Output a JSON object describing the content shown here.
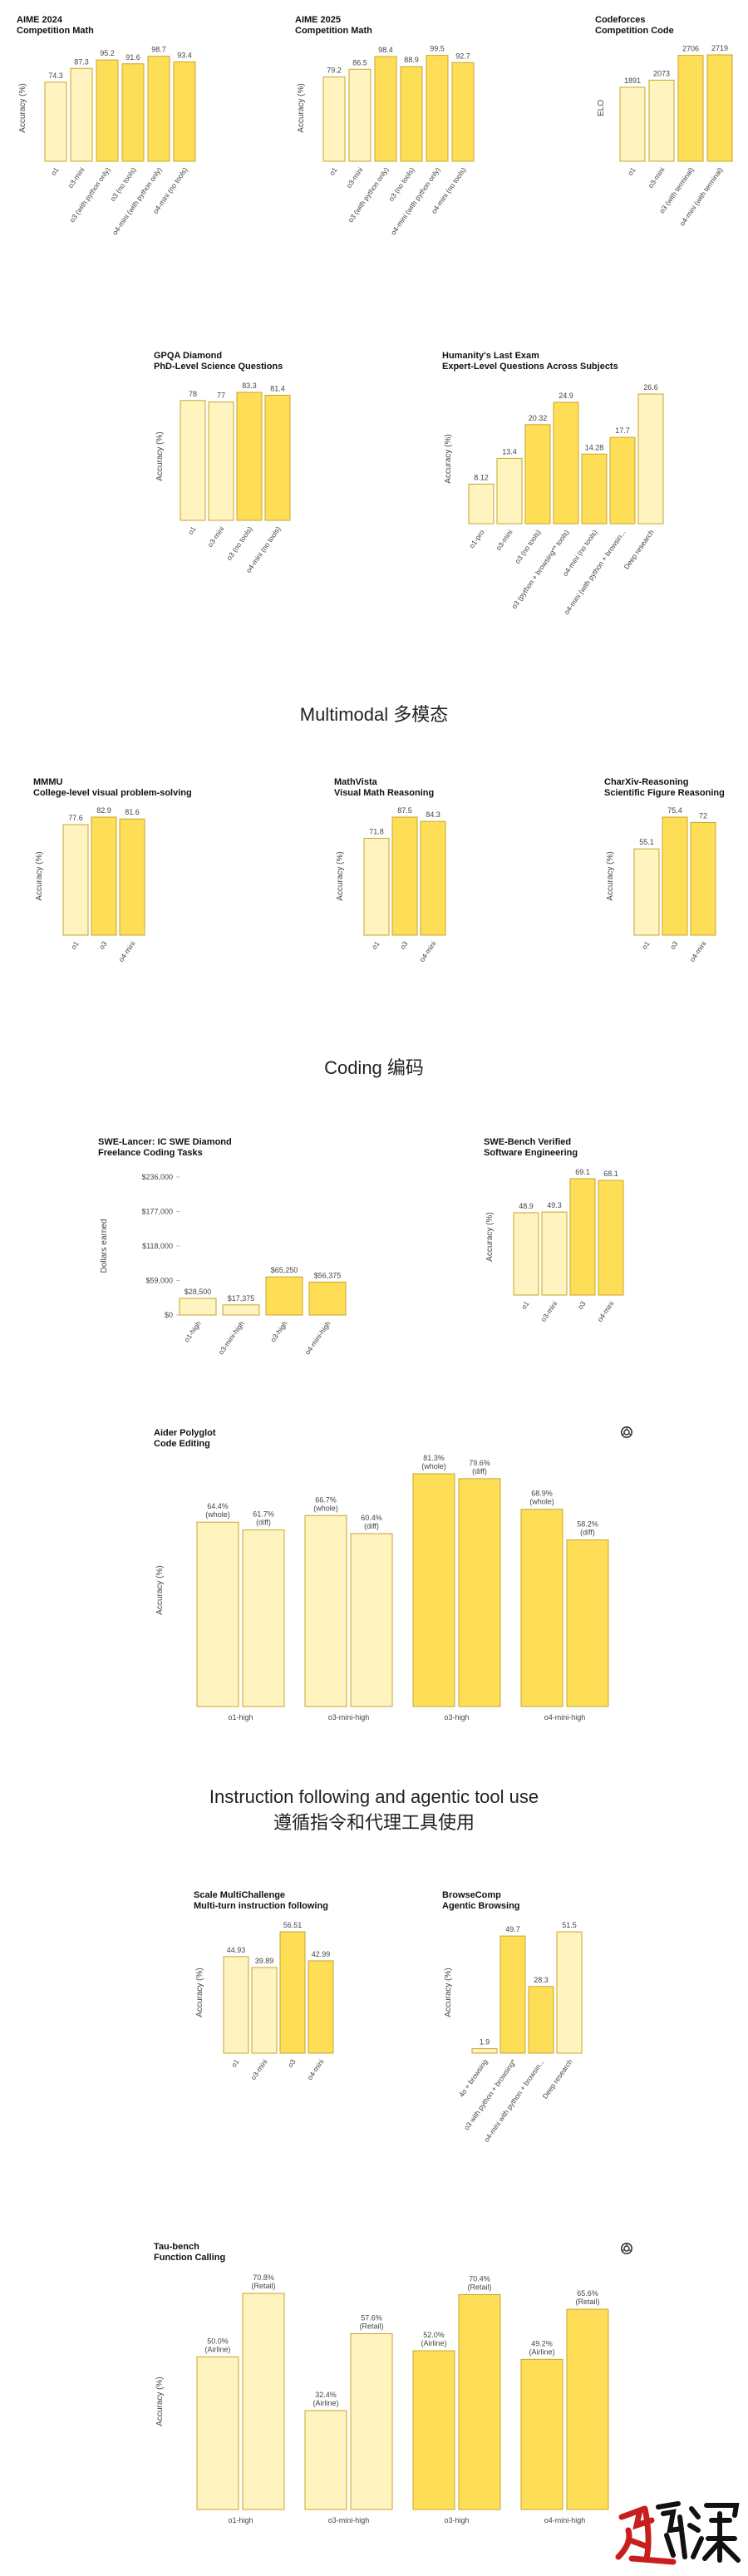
{
  "sections": {
    "multimodal": "Multimodal  多模态",
    "coding": "Coding  编码",
    "instruction_line1": "Instruction following and agentic tool use",
    "instruction_line2": "遵循指令和代理工具使用"
  },
  "icons": {
    "openai_logo": "openai-logo-icon"
  },
  "watermark": "速深",
  "colors": {
    "light": "#fff3bf",
    "mid": "#ffeb85",
    "strong": "#ffde57",
    "border": "#c9a62a"
  },
  "chart_data": [
    {
      "id": "aime2024",
      "type": "bar",
      "title": "AIME 2024",
      "subtitle": "Competition Math",
      "ylabel": "Accuracy (%)",
      "ylim": [
        0,
        100
      ],
      "categories": [
        "o1",
        "o3-mini",
        "o3 (with python only)",
        "o3 (no tools)",
        "o4-mini (with python only)",
        "o4-mini (no tools)"
      ],
      "labels": [
        "74.3",
        "87.3",
        "95.2",
        "91.6",
        "98.7",
        "93.4"
      ],
      "values": [
        74.3,
        87.3,
        95.2,
        91.6,
        98.7,
        93.4
      ],
      "shades": [
        "light",
        "light",
        "strong",
        "strong",
        "strong",
        "strong"
      ]
    },
    {
      "id": "aime2025",
      "type": "bar",
      "title": "AIME 2025",
      "subtitle": "Competition Math",
      "ylabel": "Accuracy (%)",
      "ylim": [
        0,
        100
      ],
      "categories": [
        "o1",
        "o3-mini",
        "o3 (with python only)",
        "o3 (no tools)",
        "o4-mini (with python only)",
        "o4-mini (no tools)"
      ],
      "labels": [
        "79.2",
        "86.5",
        "98.4",
        "88.9",
        "99.5",
        "92.7"
      ],
      "values": [
        79.2,
        86.5,
        98.4,
        88.9,
        99.5,
        92.7
      ],
      "shades": [
        "light",
        "light",
        "strong",
        "strong",
        "strong",
        "strong"
      ]
    },
    {
      "id": "codeforces",
      "type": "bar",
      "title": "Codeforces",
      "subtitle": "Competition Code",
      "ylabel": "ELO",
      "ylim": [
        0,
        2719
      ],
      "categories": [
        "o1",
        "o3-mini",
        "o3 (with terminal)",
        "o4-mini (with terminal)"
      ],
      "labels": [
        "1891",
        "2073",
        "2706",
        "2719"
      ],
      "values": [
        1891,
        2073,
        2706,
        2719
      ],
      "shades": [
        "light",
        "light",
        "strong",
        "strong"
      ]
    },
    {
      "id": "gpqa",
      "type": "bar",
      "title": "GPQA Diamond",
      "subtitle": "PhD-Level Science Questions",
      "ylabel": "Accuracy (%)",
      "ylim": [
        0,
        83.3
      ],
      "categories": [
        "o1",
        "o3-mini",
        "o3 (no tools)",
        "o4-mini (no tools)"
      ],
      "labels": [
        "78",
        "77",
        "83.3",
        "81.4"
      ],
      "values": [
        78,
        77,
        83.3,
        81.4
      ],
      "shades": [
        "light",
        "light",
        "strong",
        "strong"
      ]
    },
    {
      "id": "hle",
      "type": "bar",
      "title": "Humanity's Last Exam",
      "subtitle": "Expert-Level Questions Across Subjects",
      "ylabel": "Accuracy (%)",
      "ylim": [
        0,
        26.6
      ],
      "categories": [
        "o1-pro",
        "o3-mini",
        "o3 (no tools)",
        "o3 (python + browsing** tools)",
        "o4-mini (no tools)",
        "o4-mini (with python + browsin...",
        "Deep research"
      ],
      "labels": [
        "8.12",
        "13.4",
        "20.32",
        "24.9",
        "14.28",
        "17.7",
        "26.6"
      ],
      "values": [
        8.12,
        13.4,
        20.32,
        24.9,
        14.28,
        17.7,
        26.6
      ],
      "shades": [
        "light",
        "light",
        "strong",
        "strong",
        "strong",
        "strong",
        "light"
      ]
    },
    {
      "id": "mmmu",
      "type": "bar",
      "title": "MMMU",
      "subtitle": "College-level visual problem-solving",
      "ylabel": "Accuracy (%)",
      "ylim": [
        0,
        82.9
      ],
      "categories": [
        "o1",
        "o3",
        "o4-mini"
      ],
      "labels": [
        "77.6",
        "82.9",
        "81.6"
      ],
      "values": [
        77.6,
        82.9,
        81.6
      ],
      "shades": [
        "light",
        "strong",
        "strong"
      ]
    },
    {
      "id": "mathvista",
      "type": "bar",
      "title": "MathVista",
      "subtitle": "Visual Math Reasoning",
      "ylabel": "Accuracy (%)",
      "ylim": [
        0,
        87.5
      ],
      "categories": [
        "o1",
        "o3",
        "o4-mini"
      ],
      "labels": [
        "71.8",
        "87.5",
        "84.3"
      ],
      "values": [
        71.8,
        87.5,
        84.3
      ],
      "shades": [
        "light",
        "strong",
        "strong"
      ]
    },
    {
      "id": "charxiv",
      "type": "bar",
      "title": "CharXiv-Reasoning",
      "subtitle": "Scientific Figure Reasoning",
      "ylabel": "Accuracy (%)",
      "ylim": [
        0,
        75.4
      ],
      "categories": [
        "o1",
        "o3",
        "o4-mini"
      ],
      "labels": [
        "55.1",
        "75.4",
        "72"
      ],
      "values": [
        55.1,
        75.4,
        72
      ],
      "shades": [
        "light",
        "strong",
        "strong"
      ]
    },
    {
      "id": "swelancer",
      "type": "bar",
      "title": "SWE-Lancer: IC SWE Diamond",
      "subtitle": "Freelance Coding Tasks",
      "ylabel": "Dollars earned",
      "ylim": [
        0,
        236000
      ],
      "yticks": [
        "$0",
        "$59,000",
        "$118,000",
        "$177,000",
        "$236,000"
      ],
      "categories": [
        "o1-high",
        "o3-mini-high",
        "o3-high",
        "o4-mini-high"
      ],
      "labels": [
        "$28,500",
        "$17,375",
        "$65,250",
        "$56,375"
      ],
      "values": [
        28500,
        17375,
        65250,
        56375
      ],
      "shades": [
        "light",
        "light",
        "strong",
        "strong"
      ]
    },
    {
      "id": "swebench",
      "type": "bar",
      "title": "SWE-Bench Verified",
      "subtitle": "Software Engineering",
      "ylabel": "Accuracy (%)",
      "ylim": [
        0,
        69.1
      ],
      "categories": [
        "o1",
        "o3-mini",
        "o3",
        "o4-mini"
      ],
      "labels": [
        "48.9",
        "49.3",
        "69.1",
        "68.1"
      ],
      "values": [
        48.9,
        49.3,
        69.1,
        68.1
      ],
      "shades": [
        "light",
        "light",
        "strong",
        "strong"
      ]
    },
    {
      "id": "aider",
      "type": "bar",
      "title": "Aider Polyglot",
      "subtitle": "Code Editing",
      "ylabel": "Accuracy (%)",
      "ylim": [
        0,
        81.3
      ],
      "categories": [
        "o1-high",
        "o3-mini-high",
        "o3-high",
        "o4-mini-high"
      ],
      "series": [
        {
          "name": "whole",
          "labels": [
            "64.4%",
            "66.7%",
            "81.3%",
            "68.9%"
          ],
          "tags": [
            "(whole)",
            "(whole)",
            "(whole)",
            "(whole)"
          ],
          "values": [
            64.4,
            66.7,
            81.3,
            68.9
          ]
        },
        {
          "name": "diff",
          "labels": [
            "61.7%",
            "60.4%",
            "79.6%",
            "58.2%"
          ],
          "tags": [
            "(diff)",
            "(diff)",
            "(diff)",
            "(diff)"
          ],
          "values": [
            61.7,
            60.4,
            79.6,
            58.2
          ]
        }
      ],
      "shades": [
        "light",
        "light",
        "strong",
        "strong"
      ]
    },
    {
      "id": "multichallenge",
      "type": "bar",
      "title": "Scale MultiChallenge",
      "subtitle": "Multi-turn instruction following",
      "ylabel": "Accuracy (%)",
      "ylim": [
        0,
        56.51
      ],
      "categories": [
        "o1",
        "o3-mini",
        "o3",
        "o4-mini"
      ],
      "labels": [
        "44.93",
        "39.89",
        "56.51",
        "42.99"
      ],
      "values": [
        44.93,
        39.89,
        56.51,
        42.99
      ],
      "shades": [
        "light",
        "light",
        "strong",
        "strong"
      ]
    },
    {
      "id": "browsecomp",
      "type": "bar",
      "title": "BrowseComp",
      "subtitle": "Agentic Browsing",
      "ylabel": "Accuracy (%)",
      "ylim": [
        0,
        51.5
      ],
      "categories": [
        "4o + browsing",
        "o3 with python + browsing*",
        "o4-mini with python + browsin...",
        "Deep research"
      ],
      "labels": [
        "1.9",
        "49.7",
        "28.3",
        "51.5"
      ],
      "values": [
        1.9,
        49.7,
        28.3,
        51.5
      ],
      "shades": [
        "light",
        "strong",
        "strong",
        "light"
      ]
    },
    {
      "id": "taubench",
      "type": "bar",
      "title": "Tau-bench",
      "subtitle": "Function Calling",
      "ylabel": "Accuracy (%)",
      "ylim": [
        0,
        70.8
      ],
      "categories": [
        "o1-high",
        "o3-mini-high",
        "o3-high",
        "o4-mini-high"
      ],
      "series": [
        {
          "name": "Airline",
          "labels": [
            "50.0%",
            "32.4%",
            "52.0%",
            "49.2%"
          ],
          "tags": [
            "(Airline)",
            "(Airline)",
            "(Airline)",
            "(Airline)"
          ],
          "values": [
            50.0,
            32.4,
            52.0,
            49.2
          ]
        },
        {
          "name": "Retail",
          "labels": [
            "70.8%",
            "57.6%",
            "70.4%",
            "65.6%"
          ],
          "tags": [
            "(Retail)",
            "(Retail)",
            "(Retail)",
            "(Retail)"
          ],
          "values": [
            70.8,
            57.6,
            70.4,
            65.6
          ]
        }
      ],
      "shades": [
        "light",
        "light",
        "strong",
        "strong"
      ]
    }
  ]
}
